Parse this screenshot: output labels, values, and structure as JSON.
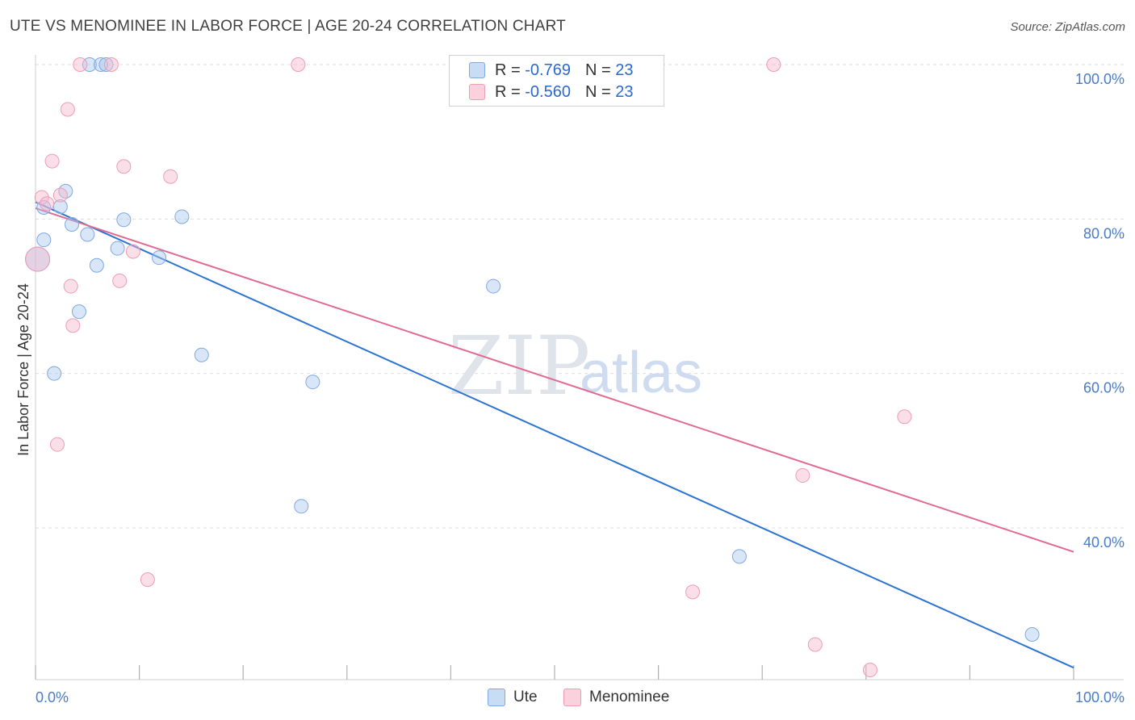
{
  "header": {
    "title": "UTE VS MENOMINEE IN LABOR FORCE | AGE 20-24 CORRELATION CHART",
    "source": "Source: ZipAtlas.com"
  },
  "watermark": {
    "zip": "ZIP",
    "atlas": "atlas"
  },
  "legend": {
    "rows": [
      {
        "r_label": "R =",
        "r_value": "-0.769",
        "n_label": "N =",
        "n_value": "23",
        "color": "#a9c8f0"
      },
      {
        "r_label": "R =",
        "r_value": "-0.560",
        "n_label": "N =",
        "n_value": "23",
        "color": "#f7b9cb"
      }
    ]
  },
  "bottom_legend": [
    {
      "label": "Ute",
      "color": "#a9c8f0"
    },
    {
      "label": "Menominee",
      "color": "#f7b9cb"
    }
  ],
  "chart_data": {
    "type": "scatter",
    "title": "UTE VS MENOMINEE IN LABOR FORCE | AGE 20-24 CORRELATION CHART",
    "xlabel": "",
    "ylabel": "In Labor Force | Age 20-24",
    "xlim": [
      0,
      100
    ],
    "ylim": [
      18,
      103
    ],
    "x_tick_labels": [
      "0.0%",
      "100.0%"
    ],
    "y_ticks": [
      40,
      60,
      80,
      100
    ],
    "y_tick_labels": [
      "40.0%",
      "60.0%",
      "80.0%",
      "100.0%"
    ],
    "grid": "horizontal dashed",
    "legend_position": "top-center",
    "series": [
      {
        "name": "Ute",
        "color": "#a9c8f0",
        "stroke": "#7fa9e0",
        "line_color": "#2d74d2",
        "trend": {
          "x": [
            0,
            100
          ],
          "y": [
            82.2,
            21.9
          ]
        },
        "points": [
          {
            "x": 5.2,
            "y": 100
          },
          {
            "x": 6.3,
            "y": 100
          },
          {
            "x": 6.8,
            "y": 100
          },
          {
            "x": 2.9,
            "y": 83.6
          },
          {
            "x": 0.8,
            "y": 81.5
          },
          {
            "x": 2.4,
            "y": 81.6
          },
          {
            "x": 14.1,
            "y": 80.3
          },
          {
            "x": 8.5,
            "y": 79.9
          },
          {
            "x": 3.5,
            "y": 79.3
          },
          {
            "x": 5.0,
            "y": 78.0
          },
          {
            "x": 0.8,
            "y": 77.3
          },
          {
            "x": 7.9,
            "y": 76.2
          },
          {
            "x": 11.9,
            "y": 75.0
          },
          {
            "x": 5.9,
            "y": 74.0
          },
          {
            "x": 0.2,
            "y": 74.8
          },
          {
            "x": 44.1,
            "y": 71.3
          },
          {
            "x": 4.2,
            "y": 68.0
          },
          {
            "x": 16.0,
            "y": 62.4
          },
          {
            "x": 1.8,
            "y": 60.0
          },
          {
            "x": 26.7,
            "y": 58.9
          },
          {
            "x": 25.6,
            "y": 42.8
          },
          {
            "x": 67.8,
            "y": 36.3
          },
          {
            "x": 96.0,
            "y": 26.2
          }
        ]
      },
      {
        "name": "Menominee",
        "color": "#f7b9cb",
        "stroke": "#ee9db4",
        "line_color": "#e06a92",
        "trend": {
          "x": [
            0,
            100
          ],
          "y": [
            81.4,
            36.9
          ]
        },
        "points": [
          {
            "x": 4.3,
            "y": 100
          },
          {
            "x": 7.3,
            "y": 100
          },
          {
            "x": 25.3,
            "y": 100
          },
          {
            "x": 71.1,
            "y": 100
          },
          {
            "x": 3.1,
            "y": 94.2
          },
          {
            "x": 1.6,
            "y": 87.5
          },
          {
            "x": 8.5,
            "y": 86.8
          },
          {
            "x": 13.0,
            "y": 85.5
          },
          {
            "x": 0.6,
            "y": 82.8
          },
          {
            "x": 2.4,
            "y": 83.1
          },
          {
            "x": 1.1,
            "y": 82.0
          },
          {
            "x": 9.4,
            "y": 75.8
          },
          {
            "x": 8.1,
            "y": 72.0
          },
          {
            "x": 3.4,
            "y": 71.3
          },
          {
            "x": 0.2,
            "y": 74.8
          },
          {
            "x": 3.6,
            "y": 66.2
          },
          {
            "x": 83.7,
            "y": 54.4
          },
          {
            "x": 2.1,
            "y": 50.8
          },
          {
            "x": 73.9,
            "y": 46.8
          },
          {
            "x": 10.8,
            "y": 33.3
          },
          {
            "x": 63.3,
            "y": 31.7
          },
          {
            "x": 75.1,
            "y": 24.9
          },
          {
            "x": 80.4,
            "y": 21.6
          }
        ]
      }
    ]
  }
}
